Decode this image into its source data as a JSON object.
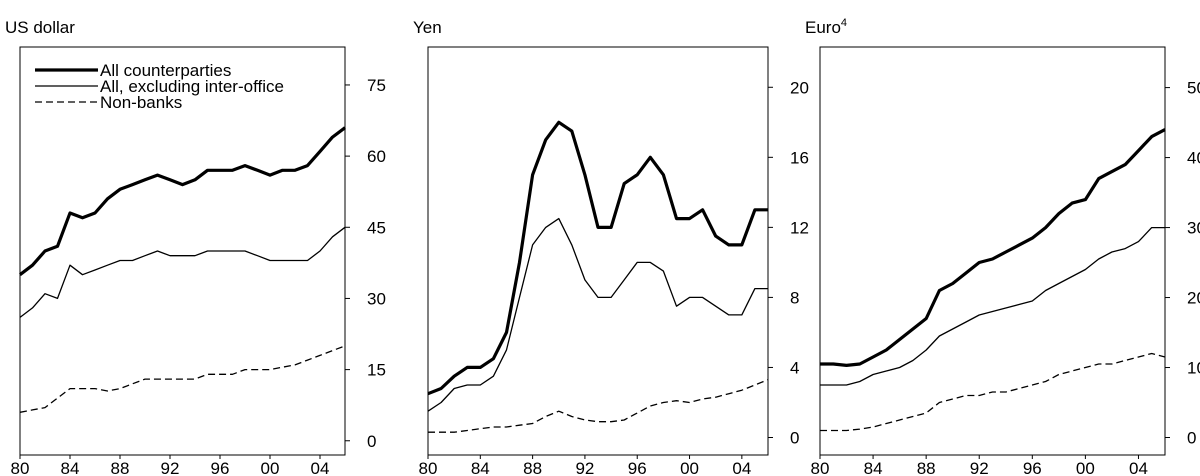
{
  "chart_data": [
    {
      "type": "line",
      "title": "US dollar",
      "legend": true,
      "x": [
        1980,
        1981,
        1982,
        1983,
        1984,
        1985,
        1986,
        1987,
        1988,
        1989,
        1990,
        1991,
        1992,
        1993,
        1994,
        1995,
        1996,
        1997,
        1998,
        1999,
        2000,
        2001,
        2002,
        2003,
        2004,
        2005,
        2006
      ],
      "xlim": [
        1980,
        2006
      ],
      "ylim": [
        -3,
        83
      ],
      "xticks": [
        {
          "value": 1980,
          "label": "80"
        },
        {
          "value": 1984,
          "label": "84"
        },
        {
          "value": 1988,
          "label": "88"
        },
        {
          "value": 1992,
          "label": "92"
        },
        {
          "value": 1996,
          "label": "96"
        },
        {
          "value": 2000,
          "label": "00"
        },
        {
          "value": 2004,
          "label": "04"
        }
      ],
      "yticks": [
        0,
        15,
        30,
        45,
        60,
        75
      ],
      "series": [
        {
          "name": "All counterparties",
          "color": "#000000",
          "style": "thick",
          "values": [
            35,
            37,
            40,
            41,
            48,
            47,
            48,
            51,
            53,
            54,
            55,
            56,
            55,
            54,
            55,
            57,
            57,
            57,
            58,
            57,
            56,
            57,
            57,
            58,
            61,
            64,
            66
          ]
        },
        {
          "name": "All, excluding inter-office",
          "color": "#000000",
          "style": "thin",
          "values": [
            26,
            28,
            31,
            30,
            37,
            35,
            36,
            37,
            38,
            38,
            39,
            40,
            39,
            39,
            39,
            40,
            40,
            40,
            40,
            39,
            38,
            38,
            38,
            38,
            40,
            43,
            45
          ]
        },
        {
          "name": "Non-banks",
          "color": "#000000",
          "style": "dashed",
          "values": [
            6,
            6.5,
            7,
            9,
            11,
            11,
            11,
            10.5,
            11,
            12,
            13,
            13,
            13,
            13,
            13,
            14,
            14,
            14,
            15,
            15,
            15,
            15.5,
            16,
            17,
            18,
            19,
            20
          ]
        }
      ]
    },
    {
      "type": "line",
      "title": "Yen",
      "legend": false,
      "x": [
        1980,
        1981,
        1982,
        1983,
        1984,
        1985,
        1986,
        1987,
        1988,
        1989,
        1990,
        1991,
        1992,
        1993,
        1994,
        1995,
        1996,
        1997,
        1998,
        1999,
        2000,
        2001,
        2002,
        2003,
        2004,
        2005,
        2006
      ],
      "xlim": [
        1980,
        2006
      ],
      "ylim": [
        -1,
        22.3
      ],
      "xticks": [
        {
          "value": 1980,
          "label": "80"
        },
        {
          "value": 1984,
          "label": "84"
        },
        {
          "value": 1988,
          "label": "88"
        },
        {
          "value": 1992,
          "label": "92"
        },
        {
          "value": 1996,
          "label": "96"
        },
        {
          "value": 2000,
          "label": "00"
        },
        {
          "value": 2004,
          "label": "04"
        }
      ],
      "yticks": [
        0,
        4,
        8,
        12,
        16,
        20
      ],
      "series": [
        {
          "color": "#000000",
          "style": "thick",
          "values": [
            2.5,
            2.8,
            3.5,
            4,
            4,
            4.5,
            6,
            10,
            15,
            17,
            18,
            17.5,
            15,
            12,
            12,
            14.5,
            15,
            16,
            15,
            12.5,
            12.5,
            13,
            11.5,
            11,
            11,
            13,
            13
          ]
        },
        {
          "color": "#000000",
          "style": "thin",
          "values": [
            1.5,
            2,
            2.8,
            3,
            3,
            3.5,
            5,
            8,
            11,
            12,
            12.5,
            11,
            9,
            8,
            8,
            9,
            10,
            10,
            9.5,
            7.5,
            8,
            8,
            7.5,
            7,
            7,
            8.5,
            8.5
          ]
        },
        {
          "color": "#000000",
          "style": "dashed",
          "values": [
            0.3,
            0.3,
            0.3,
            0.4,
            0.5,
            0.6,
            0.6,
            0.7,
            0.8,
            1.2,
            1.5,
            1.2,
            1,
            0.9,
            0.9,
            1,
            1.4,
            1.8,
            2,
            2.1,
            2,
            2.2,
            2.3,
            2.5,
            2.7,
            3,
            3.3
          ]
        }
      ]
    },
    {
      "type": "line",
      "title": "Euro",
      "title_superscript": "4",
      "legend": false,
      "x": [
        1980,
        1981,
        1982,
        1983,
        1984,
        1985,
        1986,
        1987,
        1988,
        1989,
        1990,
        1991,
        1992,
        1993,
        1994,
        1995,
        1996,
        1997,
        1998,
        1999,
        2000,
        2001,
        2002,
        2003,
        2004,
        2005,
        2006
      ],
      "xlim": [
        1980,
        2006
      ],
      "ylim": [
        -2.5,
        55.8
      ],
      "xticks": [
        {
          "value": 1980,
          "label": "80"
        },
        {
          "value": 1984,
          "label": "84"
        },
        {
          "value": 1988,
          "label": "88"
        },
        {
          "value": 1992,
          "label": "92"
        },
        {
          "value": 1996,
          "label": "96"
        },
        {
          "value": 2000,
          "label": "00"
        },
        {
          "value": 2004,
          "label": "04"
        }
      ],
      "yticks": [
        0,
        10,
        20,
        30,
        40,
        50
      ],
      "series": [
        {
          "color": "#000000",
          "style": "thick",
          "values": [
            10.5,
            10.5,
            10.3,
            10.5,
            11.5,
            12.5,
            14,
            15.5,
            17,
            21,
            22,
            23.5,
            25,
            25.5,
            26.5,
            27.5,
            28.5,
            30,
            32,
            33.5,
            34,
            37,
            38,
            39,
            41,
            43,
            44
          ]
        },
        {
          "color": "#000000",
          "style": "thin",
          "values": [
            7.5,
            7.5,
            7.5,
            8,
            9,
            9.5,
            10,
            11,
            12.5,
            14.5,
            15.5,
            16.5,
            17.5,
            18,
            18.5,
            19,
            19.5,
            21,
            22,
            23,
            24,
            25.5,
            26.5,
            27,
            28,
            30,
            30
          ]
        },
        {
          "color": "#000000",
          "style": "dashed",
          "values": [
            1,
            1,
            1,
            1.2,
            1.5,
            2,
            2.5,
            3,
            3.5,
            5,
            5.5,
            6,
            6,
            6.5,
            6.5,
            7,
            7.5,
            8,
            9,
            9.5,
            10,
            10.5,
            10.5,
            11,
            11.5,
            12,
            11.5
          ]
        }
      ]
    }
  ]
}
